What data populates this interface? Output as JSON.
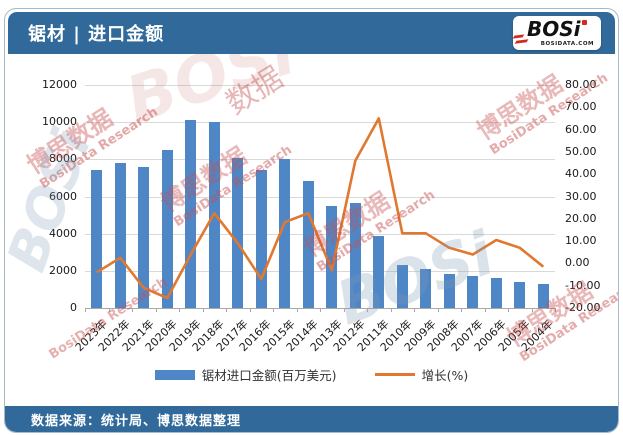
{
  "header": {
    "title": "锯材 | 进口金额",
    "logo": {
      "text": "BOSi",
      "subtext": "BOSIDATA.COM"
    }
  },
  "footer": {
    "source_label": "数据来源：统计局、博思数据整理"
  },
  "watermark": {
    "cn": "博思数据",
    "en": "BosiData Research",
    "short_cn": "数据",
    "logo": "BOSi"
  },
  "colors": {
    "header_bg": "#316A9A",
    "bar": "#4F86C6",
    "line": "#E0782F",
    "watermark_red": "#C96A6A",
    "watermark_gray": "#7E9BB4"
  },
  "chart_data": {
    "type": "bar",
    "combo": "bar+line",
    "title": "锯材 | 进口金额",
    "categories": [
      "2023年",
      "2022年",
      "2021年",
      "2020年",
      "2019年",
      "2018年",
      "2017年",
      "2016年",
      "2015年",
      "2014年",
      "2013年",
      "2012年",
      "2011年",
      "2010年",
      "2009年",
      "2008年",
      "2007年",
      "2006年",
      "2005年",
      "2004年"
    ],
    "series": [
      {
        "name": "锯材进口金额(百万美元)",
        "type": "bar",
        "axis": "left",
        "color": "#4F86C6",
        "values": [
          7450,
          7800,
          7600,
          8500,
          10100,
          10000,
          8050,
          7450,
          8000,
          6850,
          5500,
          5650,
          3850,
          2330,
          2100,
          1850,
          1700,
          1600,
          1420,
          1300
        ]
      },
      {
        "name": "增长(%)",
        "type": "line",
        "axis": "right",
        "color": "#E0782F",
        "values": [
          -4,
          2.5,
          -11,
          -15.5,
          4,
          22.5,
          9,
          -7,
          18.5,
          22.5,
          -3,
          46,
          65,
          13.5,
          13.5,
          7,
          4,
          10.5,
          7,
          -1.5
        ]
      }
    ],
    "left_axis": {
      "min": 0,
      "max": 12000,
      "step": 2000,
      "tick_labels": [
        "12000",
        "10000",
        "8000",
        "6000",
        "4000",
        "2000",
        "0"
      ]
    },
    "right_axis": {
      "min": -20,
      "max": 80,
      "step": 10,
      "tick_labels": [
        "80.00",
        "70.00",
        "60.00",
        "50.00",
        "40.00",
        "30.00",
        "20.00",
        "10.00",
        "0.00",
        "-10.00",
        "-20.00"
      ]
    },
    "grid": true,
    "legend_position": "bottom"
  }
}
